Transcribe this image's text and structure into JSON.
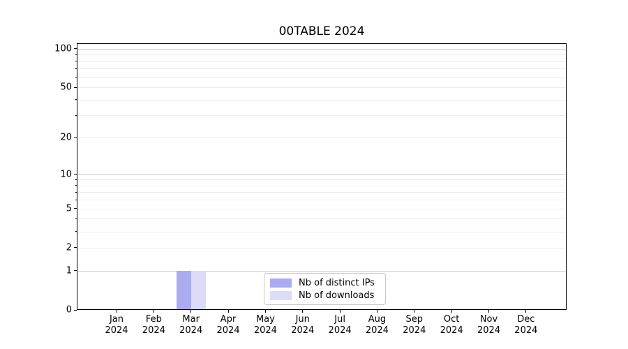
{
  "title": "00TABLE 2024",
  "chart_data": {
    "type": "bar",
    "title": "00TABLE 2024",
    "categories": [
      "Jan",
      "Feb",
      "Mar",
      "Apr",
      "May",
      "Jun",
      "Jul",
      "Aug",
      "Sep",
      "Oct",
      "Nov",
      "Dec"
    ],
    "x_year": "2024",
    "series": [
      {
        "name": "Nb of distinct IPs",
        "color": "#ababf2",
        "values": [
          0,
          0,
          1,
          0,
          0,
          0,
          0,
          0,
          0,
          0,
          0,
          0
        ]
      },
      {
        "name": "Nb of downloads",
        "color": "#dcdcf8",
        "values": [
          0,
          0,
          1,
          0,
          0,
          0,
          0,
          0,
          0,
          0,
          0,
          0
        ]
      }
    ],
    "xlabel": "",
    "ylabel": "",
    "yscale": "log1p",
    "ylim": [
      0,
      110
    ],
    "y_tick_values": [
      0,
      1,
      2,
      5,
      10,
      20,
      50,
      100
    ],
    "y_minor_values": [
      3,
      4,
      6,
      7,
      8,
      9,
      30,
      40,
      60,
      70,
      80,
      90
    ],
    "grid": true,
    "legend_position": "inside lower center"
  },
  "legend": {
    "items": [
      {
        "label": "Nb of distinct IPs",
        "color": "#ababf2"
      },
      {
        "label": "Nb of downloads",
        "color": "#dcdcf8"
      }
    ]
  },
  "colors": {
    "background": "#ffffff",
    "bar_distinct_ips": "#ababf2",
    "bar_downloads": "#dcdcf8",
    "grid_major": "#c9c9c9",
    "grid_minor": "#ececec",
    "axis": "#000000"
  }
}
